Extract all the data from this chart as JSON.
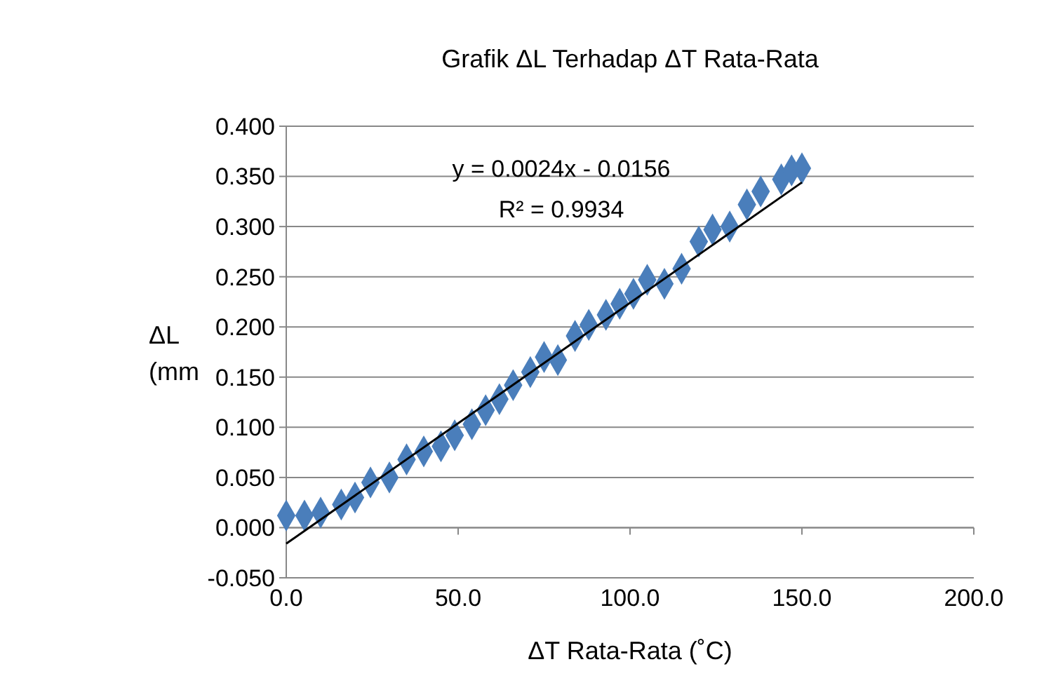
{
  "chart_data": {
    "type": "scatter",
    "title": "Grafik ΔL Terhadap ΔT Rata-Rata",
    "xlabel": "ΔT Rata-Rata (˚C)",
    "ylabel": "ΔL (mm",
    "xlim": [
      0,
      200
    ],
    "xticks": [
      {
        "value": 0,
        "label": "0.0"
      },
      {
        "value": 50,
        "label": "50.0"
      },
      {
        "value": 100,
        "label": "100.0"
      },
      {
        "value": 150,
        "label": "150.0"
      },
      {
        "value": 200,
        "label": "200.0"
      }
    ],
    "ylim": [
      -0.05,
      0.4
    ],
    "yticks": [
      {
        "value": -0.05,
        "label": "-0.050"
      },
      {
        "value": 0,
        "label": "0.000"
      },
      {
        "value": 0.05,
        "label": "0.050"
      },
      {
        "value": 0.1,
        "label": "0.100"
      },
      {
        "value": 0.15,
        "label": "0.150"
      },
      {
        "value": 0.2,
        "label": "0.200"
      },
      {
        "value": 0.25,
        "label": "0.250"
      },
      {
        "value": 0.3,
        "label": "0.300"
      },
      {
        "value": 0.35,
        "label": "0.350"
      },
      {
        "value": 0.4,
        "label": "0.400"
      }
    ],
    "grid": "y",
    "marker": "diamond",
    "annotations": [
      "y = 0.0024x - 0.0156",
      "R² = 0.9934"
    ],
    "series": [
      {
        "color": "#4a7ebb",
        "x": [
          0,
          5.3,
          10,
          16,
          20,
          24.5,
          30,
          35,
          40,
          45,
          49,
          54,
          58,
          62,
          66,
          71,
          75,
          79,
          84,
          88,
          93,
          97,
          101,
          105,
          110,
          115,
          120,
          124,
          129,
          134,
          138,
          144,
          147,
          150
        ],
        "values": [
          0.012,
          0.012,
          0.015,
          0.023,
          0.03,
          0.045,
          0.05,
          0.068,
          0.076,
          0.081,
          0.092,
          0.103,
          0.117,
          0.128,
          0.142,
          0.155,
          0.17,
          0.167,
          0.191,
          0.202,
          0.212,
          0.223,
          0.233,
          0.247,
          0.243,
          0.258,
          0.285,
          0.297,
          0.3,
          0.322,
          0.335,
          0.347,
          0.356,
          0.358
        ]
      },
      {
        "type": "line",
        "color": "#000000",
        "marker": "none",
        "x": [
          0,
          150
        ],
        "values": [
          -0.016,
          0.344
        ]
      }
    ]
  }
}
